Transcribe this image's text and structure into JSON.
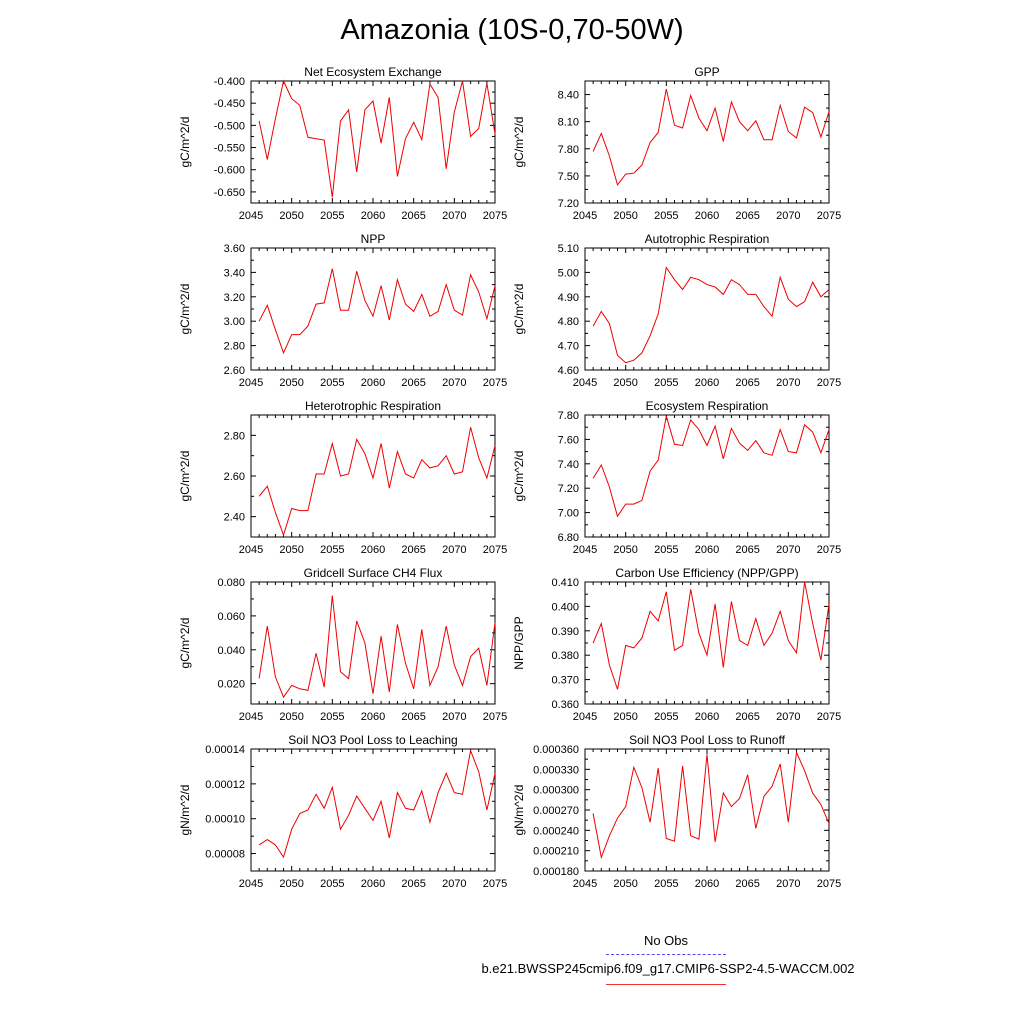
{
  "page": {
    "title": "Amazonia (10S-0,70-50W)"
  },
  "legend": {
    "obs_label": "No Obs",
    "model_label": "b.e21.BWSSP245cmip6.f09_g17.CMIP6-SSP2-4.5-WACCM.002",
    "obs_color": "#4a4af0",
    "model_color": "#ee0000"
  },
  "chart_data": [
    {
      "type": "line",
      "title": "Net Ecosystem Exchange",
      "ylabel": "gC/m^2/d",
      "xlim": [
        2045,
        2075
      ],
      "ylim": [
        -0.675,
        -0.4
      ],
      "xticks": [
        "2045",
        "2050",
        "2055",
        "2060",
        "2065",
        "2070",
        "2075"
      ],
      "yticks": [
        -0.4,
        -0.45,
        -0.5,
        -0.55,
        -0.6,
        -0.65
      ],
      "ytick_labels": [
        "-0.400",
        "-0.450",
        "-0.500",
        "-0.550",
        "-0.600",
        "-0.650"
      ],
      "x": [
        2046,
        2047,
        2048,
        2049,
        2050,
        2051,
        2052,
        2053,
        2054,
        2055,
        2056,
        2057,
        2058,
        2059,
        2060,
        2061,
        2062,
        2063,
        2064,
        2065,
        2066,
        2067,
        2068,
        2069,
        2070,
        2071,
        2072,
        2073,
        2074,
        2075
      ],
      "series": [
        {
          "name": "model",
          "values": [
            -0.49,
            -0.577,
            -0.485,
            -0.4,
            -0.44,
            -0.455,
            -0.527,
            -0.53,
            -0.533,
            -0.662,
            -0.49,
            -0.465,
            -0.605,
            -0.465,
            -0.445,
            -0.54,
            -0.437,
            -0.615,
            -0.53,
            -0.493,
            -0.532,
            -0.407,
            -0.437,
            -0.598,
            -0.47,
            -0.39,
            -0.525,
            -0.507,
            -0.405,
            -0.52
          ]
        }
      ]
    },
    {
      "type": "line",
      "title": "GPP",
      "ylabel": "gC/m^2/d",
      "xlim": [
        2045,
        2075
      ],
      "ylim": [
        7.2,
        8.55
      ],
      "xticks": [
        "2045",
        "2050",
        "2055",
        "2060",
        "2065",
        "2070",
        "2075"
      ],
      "yticks": [
        8.4,
        8.1,
        7.8,
        7.5,
        7.2
      ],
      "ytick_labels": [
        "8.40",
        "8.10",
        "7.80",
        "7.50",
        "7.20"
      ],
      "x": [
        2046,
        2047,
        2048,
        2049,
        2050,
        2051,
        2052,
        2053,
        2054,
        2055,
        2056,
        2057,
        2058,
        2059,
        2060,
        2061,
        2062,
        2063,
        2064,
        2065,
        2066,
        2067,
        2068,
        2069,
        2070,
        2071,
        2072,
        2073,
        2074,
        2075
      ],
      "series": [
        {
          "name": "model",
          "values": [
            7.77,
            7.97,
            7.72,
            7.4,
            7.52,
            7.53,
            7.62,
            7.87,
            7.98,
            8.46,
            8.06,
            8.03,
            8.39,
            8.14,
            8.0,
            8.25,
            7.88,
            8.32,
            8.1,
            8.0,
            8.11,
            7.9,
            7.9,
            8.28,
            7.99,
            7.92,
            8.26,
            8.2,
            7.93,
            8.21
          ]
        }
      ]
    },
    {
      "type": "line",
      "title": "NPP",
      "ylabel": "gC/m^2/d",
      "xlim": [
        2045,
        2075
      ],
      "ylim": [
        2.6,
        3.6
      ],
      "xticks": [
        "2045",
        "2050",
        "2055",
        "2060",
        "2065",
        "2070",
        "2075"
      ],
      "yticks": [
        3.6,
        3.4,
        3.2,
        3.0,
        2.8,
        2.6
      ],
      "ytick_labels": [
        "3.60",
        "3.40",
        "3.20",
        "3.00",
        "2.80",
        "2.60"
      ],
      "x": [
        2046,
        2047,
        2048,
        2049,
        2050,
        2051,
        2052,
        2053,
        2054,
        2055,
        2056,
        2057,
        2058,
        2059,
        2060,
        2061,
        2062,
        2063,
        2064,
        2065,
        2066,
        2067,
        2068,
        2069,
        2070,
        2071,
        2072,
        2073,
        2074,
        2075
      ],
      "series": [
        {
          "name": "model",
          "values": [
            3.0,
            3.13,
            2.93,
            2.74,
            2.89,
            2.89,
            2.96,
            3.14,
            3.15,
            3.43,
            3.09,
            3.09,
            3.41,
            3.17,
            3.04,
            3.29,
            3.01,
            3.34,
            3.14,
            3.08,
            3.22,
            3.04,
            3.08,
            3.3,
            3.09,
            3.05,
            3.38,
            3.24,
            3.02,
            3.29
          ]
        }
      ]
    },
    {
      "type": "line",
      "title": "Autotrophic Respiration",
      "ylabel": "gC/m^2/d",
      "xlim": [
        2045,
        2075
      ],
      "ylim": [
        4.6,
        5.1
      ],
      "xticks": [
        "2045",
        "2050",
        "2055",
        "2060",
        "2065",
        "2070",
        "2075"
      ],
      "yticks": [
        5.1,
        5.0,
        4.9,
        4.8,
        4.7,
        4.6
      ],
      "ytick_labels": [
        "5.10",
        "5.00",
        "4.90",
        "4.80",
        "4.70",
        "4.60"
      ],
      "x": [
        2046,
        2047,
        2048,
        2049,
        2050,
        2051,
        2052,
        2053,
        2054,
        2055,
        2056,
        2057,
        2058,
        2059,
        2060,
        2061,
        2062,
        2063,
        2064,
        2065,
        2066,
        2067,
        2068,
        2069,
        2070,
        2071,
        2072,
        2073,
        2074,
        2075
      ],
      "series": [
        {
          "name": "model",
          "values": [
            4.78,
            4.84,
            4.79,
            4.66,
            4.63,
            4.64,
            4.67,
            4.74,
            4.83,
            5.02,
            4.97,
            4.93,
            4.98,
            4.97,
            4.95,
            4.94,
            4.91,
            4.97,
            4.95,
            4.91,
            4.91,
            4.86,
            4.82,
            4.98,
            4.89,
            4.86,
            4.88,
            4.96,
            4.9,
            4.93
          ]
        }
      ]
    },
    {
      "type": "line",
      "title": "Heterotrophic Respiration",
      "ylabel": "gC/m^2/d",
      "xlim": [
        2045,
        2075
      ],
      "ylim": [
        2.3,
        2.9
      ],
      "xticks": [
        "2045",
        "2050",
        "2055",
        "2060",
        "2065",
        "2070",
        "2075"
      ],
      "yticks": [
        2.8,
        2.6,
        2.4
      ],
      "ytick_labels": [
        "2.80",
        "2.60",
        "2.40"
      ],
      "x": [
        2046,
        2047,
        2048,
        2049,
        2050,
        2051,
        2052,
        2053,
        2054,
        2055,
        2056,
        2057,
        2058,
        2059,
        2060,
        2061,
        2062,
        2063,
        2064,
        2065,
        2066,
        2067,
        2068,
        2069,
        2070,
        2071,
        2072,
        2073,
        2074,
        2075
      ],
      "series": [
        {
          "name": "model",
          "values": [
            2.5,
            2.55,
            2.42,
            2.31,
            2.44,
            2.43,
            2.43,
            2.61,
            2.61,
            2.76,
            2.6,
            2.61,
            2.78,
            2.71,
            2.59,
            2.76,
            2.54,
            2.72,
            2.61,
            2.59,
            2.68,
            2.64,
            2.65,
            2.7,
            2.61,
            2.62,
            2.84,
            2.69,
            2.59,
            2.75
          ]
        }
      ]
    },
    {
      "type": "line",
      "title": "Ecosystem Respiration",
      "ylabel": "gC/m^2/d",
      "xlim": [
        2045,
        2075
      ],
      "ylim": [
        6.8,
        7.8
      ],
      "xticks": [
        "2045",
        "2050",
        "2055",
        "2060",
        "2065",
        "2070",
        "2075"
      ],
      "yticks": [
        7.8,
        7.6,
        7.4,
        7.2,
        7.0,
        6.8
      ],
      "ytick_labels": [
        "7.80",
        "7.60",
        "7.40",
        "7.20",
        "7.00",
        "6.80"
      ],
      "x": [
        2046,
        2047,
        2048,
        2049,
        2050,
        2051,
        2052,
        2053,
        2054,
        2055,
        2056,
        2057,
        2058,
        2059,
        2060,
        2061,
        2062,
        2063,
        2064,
        2065,
        2066,
        2067,
        2068,
        2069,
        2070,
        2071,
        2072,
        2073,
        2074,
        2075
      ],
      "series": [
        {
          "name": "model",
          "values": [
            7.28,
            7.39,
            7.21,
            6.97,
            7.07,
            7.07,
            7.1,
            7.34,
            7.43,
            7.79,
            7.56,
            7.55,
            7.76,
            7.68,
            7.55,
            7.71,
            7.44,
            7.69,
            7.57,
            7.51,
            7.59,
            7.49,
            7.47,
            7.68,
            7.5,
            7.49,
            7.72,
            7.66,
            7.49,
            7.68
          ]
        }
      ]
    },
    {
      "type": "line",
      "title": "Gridcell Surface CH4 Flux",
      "ylabel": "gC/m^2/d",
      "xlim": [
        2045,
        2075
      ],
      "ylim": [
        0.008,
        0.08
      ],
      "xticks": [
        "2045",
        "2050",
        "2055",
        "2060",
        "2065",
        "2070",
        "2075"
      ],
      "yticks": [
        0.08,
        0.06,
        0.04,
        0.02
      ],
      "ytick_labels": [
        "0.080",
        "0.060",
        "0.040",
        "0.020"
      ],
      "x": [
        2046,
        2047,
        2048,
        2049,
        2050,
        2051,
        2052,
        2053,
        2054,
        2055,
        2056,
        2057,
        2058,
        2059,
        2060,
        2061,
        2062,
        2063,
        2064,
        2065,
        2066,
        2067,
        2068,
        2069,
        2070,
        2071,
        2072,
        2073,
        2074,
        2075
      ],
      "series": [
        {
          "name": "model",
          "values": [
            0.023,
            0.054,
            0.024,
            0.012,
            0.019,
            0.017,
            0.016,
            0.038,
            0.018,
            0.072,
            0.027,
            0.023,
            0.057,
            0.044,
            0.014,
            0.048,
            0.015,
            0.055,
            0.032,
            0.017,
            0.052,
            0.019,
            0.03,
            0.054,
            0.031,
            0.019,
            0.036,
            0.041,
            0.019,
            0.056
          ]
        }
      ]
    },
    {
      "type": "line",
      "title": "Carbon Use Efficiency (NPP/GPP)",
      "ylabel": "NPP/GPP",
      "xlim": [
        2045,
        2075
      ],
      "ylim": [
        0.36,
        0.41
      ],
      "xticks": [
        "2045",
        "2050",
        "2055",
        "2060",
        "2065",
        "2070",
        "2075"
      ],
      "yticks": [
        0.41,
        0.4,
        0.39,
        0.38,
        0.37,
        0.36
      ],
      "ytick_labels": [
        "0.410",
        "0.400",
        "0.390",
        "0.380",
        "0.370",
        "0.360"
      ],
      "x": [
        2046,
        2047,
        2048,
        2049,
        2050,
        2051,
        2052,
        2053,
        2054,
        2055,
        2056,
        2057,
        2058,
        2059,
        2060,
        2061,
        2062,
        2063,
        2064,
        2065,
        2066,
        2067,
        2068,
        2069,
        2070,
        2071,
        2072,
        2073,
        2074,
        2075
      ],
      "series": [
        {
          "name": "model",
          "values": [
            0.385,
            0.393,
            0.376,
            0.366,
            0.384,
            0.383,
            0.387,
            0.398,
            0.394,
            0.406,
            0.382,
            0.384,
            0.407,
            0.389,
            0.38,
            0.401,
            0.375,
            0.402,
            0.386,
            0.384,
            0.395,
            0.384,
            0.389,
            0.398,
            0.386,
            0.381,
            0.41,
            0.393,
            0.378,
            0.401
          ]
        }
      ]
    },
    {
      "type": "line",
      "title": "Soil NO3 Pool Loss to Leaching",
      "ylabel": "gN/m^2/d",
      "xlim": [
        2045,
        2075
      ],
      "ylim": [
        7e-05,
        0.00014
      ],
      "xticks": [
        "2045",
        "2050",
        "2055",
        "2060",
        "2065",
        "2070",
        "2075"
      ],
      "yticks": [
        0.00014,
        0.00012,
        0.0001,
        8e-05
      ],
      "ytick_labels": [
        "0.00014",
        "0.00012",
        "0.00010",
        "0.00008"
      ],
      "x": [
        2046,
        2047,
        2048,
        2049,
        2050,
        2051,
        2052,
        2053,
        2054,
        2055,
        2056,
        2057,
        2058,
        2059,
        2060,
        2061,
        2062,
        2063,
        2064,
        2065,
        2066,
        2067,
        2068,
        2069,
        2070,
        2071,
        2072,
        2073,
        2074,
        2075
      ],
      "series": [
        {
          "name": "model",
          "values": [
            8.5e-05,
            8.8e-05,
            8.5e-05,
            7.8e-05,
            9.4e-05,
            0.000103,
            0.000105,
            0.000114,
            0.000106,
            0.000118,
            9.4e-05,
            0.000102,
            0.000113,
            0.000106,
            9.9e-05,
            0.00011,
            8.9e-05,
            0.000115,
            0.000106,
            0.000105,
            0.000116,
            9.8e-05,
            0.000115,
            0.000126,
            0.000115,
            0.000114,
            0.000139,
            0.000127,
            0.000105,
            0.000126
          ]
        }
      ]
    },
    {
      "type": "line",
      "title": "Soil NO3 Pool Loss to Runoff",
      "ylabel": "gN/m^2/d",
      "xlim": [
        2045,
        2075
      ],
      "ylim": [
        0.00018,
        0.00036
      ],
      "xticks": [
        "2045",
        "2050",
        "2055",
        "2060",
        "2065",
        "2070",
        "2075"
      ],
      "yticks": [
        0.00036,
        0.00033,
        0.0003,
        0.00027,
        0.00024,
        0.00021,
        0.00018
      ],
      "ytick_labels": [
        "0.000360",
        "0.000330",
        "0.000300",
        "0.000270",
        "0.000240",
        "0.000210",
        "0.000180"
      ],
      "x": [
        2046,
        2047,
        2048,
        2049,
        2050,
        2051,
        2052,
        2053,
        2054,
        2055,
        2056,
        2057,
        2058,
        2059,
        2060,
        2061,
        2062,
        2063,
        2064,
        2065,
        2066,
        2067,
        2068,
        2069,
        2070,
        2071,
        2072,
        2073,
        2074,
        2075
      ],
      "series": [
        {
          "name": "model",
          "values": [
            0.000265,
            0.0002,
            0.000232,
            0.000258,
            0.000275,
            0.000333,
            0.000303,
            0.000252,
            0.000332,
            0.000228,
            0.000224,
            0.000335,
            0.000232,
            0.000227,
            0.000352,
            0.000223,
            0.000295,
            0.000275,
            0.000287,
            0.000322,
            0.000243,
            0.00029,
            0.000305,
            0.000338,
            0.000252,
            0.000355,
            0.000328,
            0.000295,
            0.000278,
            0.00025
          ]
        }
      ]
    }
  ]
}
